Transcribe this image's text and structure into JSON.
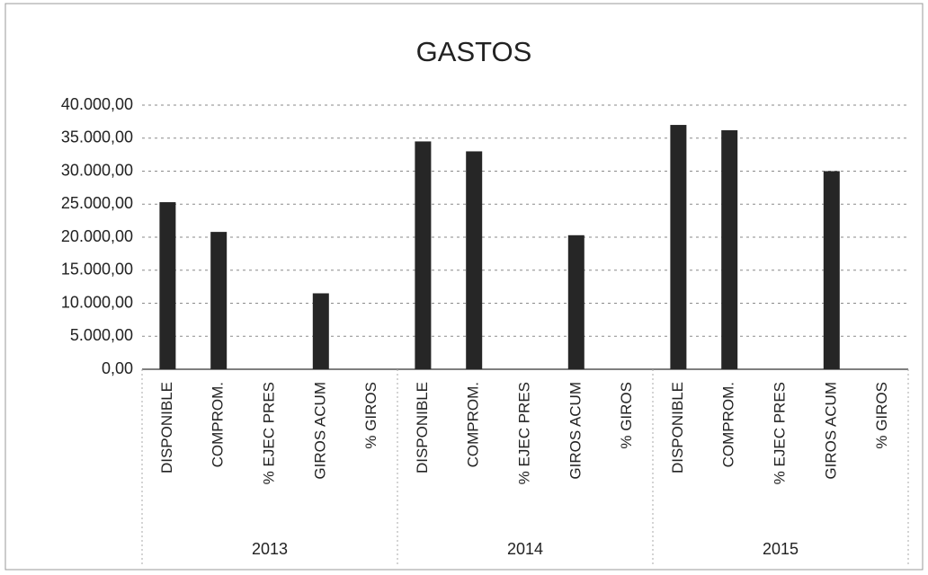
{
  "chart_data": {
    "type": "bar",
    "title": "GASTOS",
    "categories": [
      "DISPONIBLE",
      "COMPROM.",
      "% EJEC PRES",
      "GIROS ACUM",
      "% GIROS",
      "DISPONIBLE",
      "COMPROM.",
      "% EJEC PRES",
      "GIROS ACUM",
      "% GIROS",
      "DISPONIBLE",
      "COMPROM.",
      "% EJEC PRES",
      "GIROS ACUM",
      "% GIROS"
    ],
    "groups": [
      "2013",
      "2014",
      "2015"
    ],
    "values": [
      25300,
      20800,
      0,
      11500,
      0,
      34500,
      33000,
      0,
      20300,
      0,
      37000,
      36200,
      0,
      30000,
      0
    ],
    "color": "#262626",
    "ylim": [
      0,
      40000
    ],
    "yticks": [
      {
        "value": 0,
        "label": "0,00"
      },
      {
        "value": 5000,
        "label": "5.000,00"
      },
      {
        "value": 10000,
        "label": "10.000,00"
      },
      {
        "value": 15000,
        "label": "15.000,00"
      },
      {
        "value": 20000,
        "label": "20.000,00"
      },
      {
        "value": 25000,
        "label": "25.000,00"
      },
      {
        "value": 30000,
        "label": "30.000,00"
      },
      {
        "value": 35000,
        "label": "35.000,00"
      },
      {
        "value": 40000,
        "label": "40.000,00"
      }
    ],
    "grid": true
  }
}
